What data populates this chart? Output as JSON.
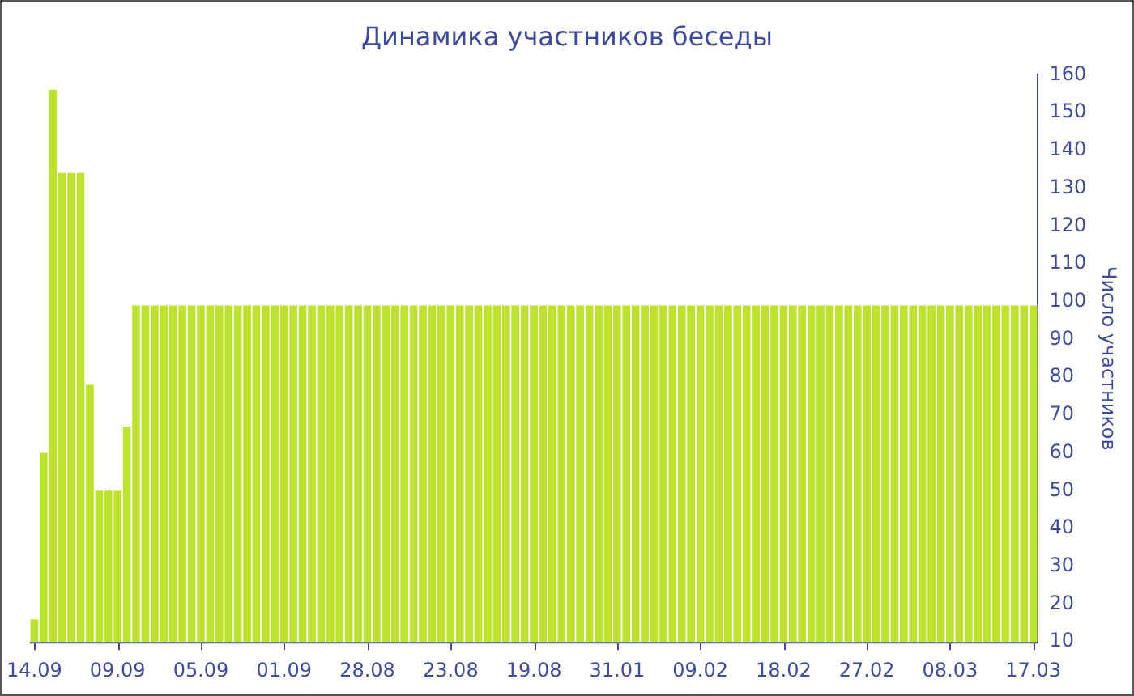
{
  "chart_data": {
    "type": "bar",
    "title": "Динамика участников беседы",
    "ylabel": "Число участников",
    "categories": [
      "14.09",
      null,
      null,
      null,
      null,
      null,
      null,
      null,
      null,
      "09.09",
      null,
      null,
      null,
      null,
      null,
      null,
      null,
      null,
      "05.09",
      null,
      null,
      null,
      null,
      null,
      null,
      null,
      null,
      "01.09",
      null,
      null,
      null,
      null,
      null,
      null,
      null,
      null,
      "28.08",
      null,
      null,
      null,
      null,
      null,
      null,
      null,
      null,
      "23.08",
      null,
      null,
      null,
      null,
      null,
      null,
      null,
      null,
      "19.08",
      null,
      null,
      null,
      null,
      null,
      null,
      null,
      null,
      "31.01",
      null,
      null,
      null,
      null,
      null,
      null,
      null,
      null,
      "09.02",
      null,
      null,
      null,
      null,
      null,
      null,
      null,
      null,
      "18.02",
      null,
      null,
      null,
      null,
      null,
      null,
      null,
      null,
      "27.02",
      null,
      null,
      null,
      null,
      null,
      null,
      null,
      null,
      "08.03",
      null,
      null,
      null,
      null,
      null,
      null,
      null,
      null,
      "17.03"
    ],
    "values": [
      16,
      60,
      156,
      134,
      134,
      134,
      78,
      50,
      50,
      50,
      67,
      99,
      99,
      99,
      99,
      99,
      99,
      99,
      99,
      99,
      99,
      99,
      99,
      99,
      99,
      99,
      99,
      99,
      99,
      99,
      99,
      99,
      99,
      99,
      99,
      99,
      99,
      99,
      99,
      99,
      99,
      99,
      99,
      99,
      99,
      99,
      99,
      99,
      99,
      99,
      99,
      99,
      99,
      99,
      99,
      99,
      99,
      99,
      99,
      99,
      99,
      99,
      99,
      99,
      99,
      99,
      99,
      99,
      99,
      99,
      99,
      99,
      99,
      99,
      99,
      99,
      99,
      99,
      99,
      99,
      99,
      99,
      99,
      99,
      99,
      99,
      99,
      99,
      99,
      99,
      99,
      99,
      99,
      99,
      99,
      99,
      99,
      99,
      99,
      99,
      99,
      99,
      99,
      99,
      99,
      99,
      99,
      99,
      99
    ],
    "color": "#bde22f",
    "ylim": [
      10,
      160
    ],
    "yticks": [
      10,
      20,
      30,
      40,
      50,
      60,
      70,
      80,
      90,
      100,
      110,
      120,
      130,
      140,
      150,
      160
    ]
  }
}
